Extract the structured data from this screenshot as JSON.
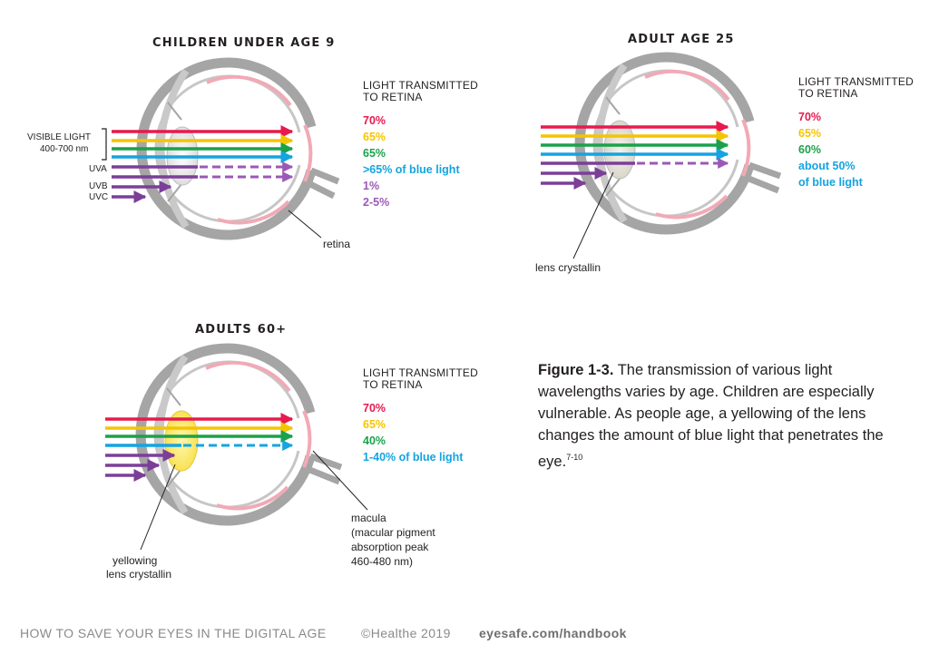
{
  "panels": [
    {
      "title": "CHILDREN UNDER AGE 9",
      "tx_heading_1": "LIGHT TRANSMITTED",
      "tx_heading_2": "TO RETINA",
      "values": [
        "70%",
        "65%",
        "65%",
        ">65% of blue light",
        "1%",
        "2-5%"
      ],
      "labels": {
        "visible_light_1": "VISIBLE LIGHT",
        "visible_light_2": "400-700 nm",
        "uva": "UVA",
        "uvb": "UVB",
        "uvc": "UVC",
        "retina": "retina"
      }
    },
    {
      "title": "ADULT AGE 25",
      "tx_heading_1": "LIGHT TRANSMITTED",
      "tx_heading_2": "TO RETINA",
      "values": [
        "70%",
        "65%",
        "60%",
        "about 50%",
        "of blue light"
      ],
      "labels": {
        "lens": "lens crystallin"
      }
    },
    {
      "title": "ADULTS 60+",
      "tx_heading_1": "LIGHT TRANSMITTED",
      "tx_heading_2": "TO RETINA",
      "values": [
        "70%",
        "65%",
        "40%",
        "1-40% of blue light"
      ],
      "labels": {
        "lens_1": "yellowing",
        "lens_2": "lens crystallin",
        "macula_1": "macula",
        "macula_2": "(macular pigment",
        "macula_3": "absorption peak",
        "macula_4": "460-480 nm)"
      }
    }
  ],
  "caption": {
    "figure_label": "Figure 1-3.",
    "text": " The transmission of various light wavelengths varies by age. Children are especially vulnerable. As people age, a yellowing of the lens changes the amount of blue light that penetrates the eye.",
    "refs": "7-10"
  },
  "footer": {
    "book": "HOW TO SAVE YOUR EYES IN THE DIGITAL AGE",
    "copyright": "©Healthe 2019",
    "url": "eyesafe.com/handbook"
  },
  "colors": {
    "red": "#e8194e",
    "yellow": "#f5c400",
    "green": "#1aa24a",
    "blue": "#14a4e0",
    "violet": "#7b3f98",
    "light_violet": "#9b59b6",
    "eye_gray": "#9d9d9d",
    "retina_pink": "#f2a9b6"
  }
}
